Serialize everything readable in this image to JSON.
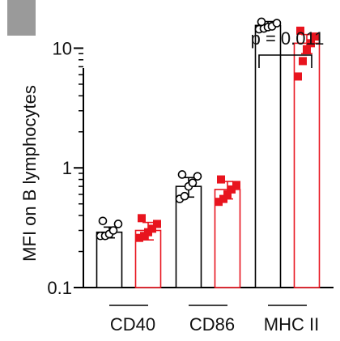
{
  "chart_data": {
    "type": "bar",
    "y_scale": "log",
    "ylim": [
      0.1,
      20
    ],
    "yticks": [
      {
        "value": 0.1,
        "label": "0.1"
      },
      {
        "value": 1,
        "label": "1"
      },
      {
        "value": 10,
        "label": "10"
      }
    ],
    "ylabel": "MFI on B lymphocytes",
    "categories": [
      "CD40",
      "CD86",
      "MHC II"
    ],
    "colors": {
      "group1": "#000000",
      "group2": "#e8141e"
    },
    "series": [
      {
        "values": [
          0.29,
          0.7,
          15.5
        ],
        "errors": [
          0.03,
          0.13,
          1.2
        ],
        "points": [
          [
            0.27,
            0.27,
            0.28,
            0.3,
            0.34,
            0.36
          ],
          [
            0.55,
            0.58,
            0.7,
            0.75,
            0.85,
            0.88
          ],
          [
            14.4,
            14.6,
            15.0,
            15.2,
            16.2,
            16.6
          ]
        ]
      },
      {
        "values": [
          0.3,
          0.66,
          11.0
        ],
        "errors": [
          0.05,
          0.11,
          2.0
        ],
        "points": [
          [
            0.26,
            0.27,
            0.29,
            0.31,
            0.34,
            0.38
          ],
          [
            0.52,
            0.55,
            0.6,
            0.66,
            0.72,
            0.8
          ],
          [
            5.8,
            7.8,
            9.8,
            11.0,
            12.5,
            14.0
          ]
        ]
      }
    ],
    "annotations": [
      {
        "text": "p = 0.011",
        "category": "MHC II"
      }
    ]
  }
}
